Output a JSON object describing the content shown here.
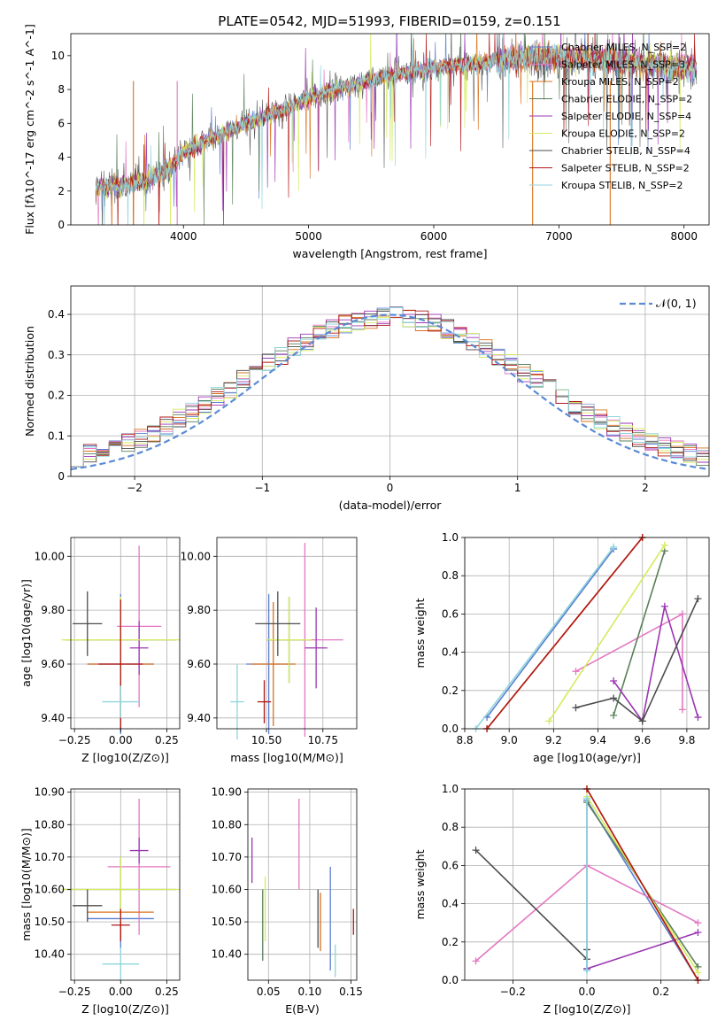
{
  "title": "PLATE=0542, MJD=51993, FIBERID=0159, z=0.151",
  "colors": [
    "#5b7fd1",
    "#e377c2",
    "#d9711f",
    "#5a7f5a",
    "#9b36b3",
    "#d4eb5e",
    "#4d4d4d",
    "#b01717",
    "#8fd5dd"
  ],
  "models": [
    "Chabrier MILES, N_SSP=2",
    "Salpeter MILES, N_SSP=3",
    "Kroupa MILES, N_SSP=2",
    "Chabrier ELODIE, N_SSP=2",
    "Salpeter ELODIE, N_SSP=4",
    "Kroupa ELODIE, N_SSP=2",
    "Chabrier STELIB, N_SSP=4",
    "Salpeter STELIB, N_SSP=2",
    "Kroupa STELIB, N_SSP=2"
  ],
  "chart_data": [
    {
      "id": "spectrum",
      "type": "line",
      "xlabel": "wavelength [Angstrom, rest frame]",
      "ylabel": "Flux [fλ10^-17 erg cm^-2 s^-1 A^-1]",
      "xlim": [
        3100,
        8200
      ],
      "ylim": [
        0,
        11.3
      ],
      "xticks": [
        4000,
        5000,
        6000,
        7000,
        8000
      ],
      "yticks": [
        0,
        2,
        4,
        6,
        8,
        10
      ],
      "legend_loc": "upper-right",
      "continuum": {
        "x": [
          3300,
          3500,
          3700,
          3900,
          4000,
          4200,
          4500,
          4800,
          5000,
          5300,
          5600,
          6000,
          6300,
          6600,
          7000,
          7400,
          7800,
          8100
        ],
        "y": [
          2.3,
          2.3,
          2.6,
          3.4,
          4.3,
          5.0,
          6.0,
          6.8,
          7.5,
          8.2,
          8.7,
          9.3,
          9.5,
          9.8,
          9.9,
          9.7,
          9.4,
          9.2
        ]
      },
      "data_range": [
        3300,
        8100
      ]
    },
    {
      "id": "residuals",
      "type": "line",
      "xlabel": "(data-model)/error",
      "ylabel": "Normed distribution",
      "xlim": [
        -2.5,
        2.5
      ],
      "ylim": [
        0,
        0.47
      ],
      "xticks": [
        -2,
        -1,
        0,
        1,
        2
      ],
      "yticks": [
        0.0,
        0.1,
        0.2,
        0.3,
        0.4
      ],
      "legend": "𝒩(0, 1)",
      "legend_loc": "upper-right",
      "bin_width": 0.1
    },
    {
      "id": "z-age",
      "type": "scatter",
      "xlabel": "Z [log10(Z/Z⊙)]",
      "ylabel": "age [log10(age/yr)]",
      "xlim": [
        -0.27,
        0.32
      ],
      "ylim": [
        9.36,
        10.07
      ],
      "xticks": [
        -0.25,
        0.0,
        0.25
      ],
      "yticks": [
        9.4,
        9.6,
        9.8,
        10.0
      ],
      "points": [
        {
          "m": 0,
          "x": 0.0,
          "y": 9.6,
          "xe": 0.18,
          "ye": 0.26
        },
        {
          "m": 1,
          "x": 0.1,
          "y": 9.74,
          "xe": 0.12,
          "ye": 0.3
        },
        {
          "m": 2,
          "x": 0.0,
          "y": 9.6,
          "xe": 0.18,
          "ye": 0.23
        },
        {
          "m": 3,
          "x": 0.0,
          "y": 9.69,
          "xe": 0.3,
          "ye": 0.16
        },
        {
          "m": 4,
          "x": 0.1,
          "y": 9.66,
          "xe": 0.05,
          "ye": 0.1
        },
        {
          "m": 5,
          "x": 0.0,
          "y": 9.69,
          "xe": 0.32,
          "ye": 0.16
        },
        {
          "m": 6,
          "x": -0.18,
          "y": 9.75,
          "xe": 0.08,
          "ye": 0.12
        },
        {
          "m": 7,
          "x": 0.0,
          "y": 9.6,
          "xe": 0.12,
          "ye": 0.24
        },
        {
          "m": 8,
          "x": 0.0,
          "y": 9.46,
          "xe": 0.1,
          "ye": 0.06
        }
      ]
    },
    {
      "id": "mass-age",
      "type": "scatter",
      "xlabel": "mass [log10(M/M⊙)]",
      "ylabel": "",
      "xlim": [
        10.28,
        10.9
      ],
      "ylim": [
        9.36,
        10.07
      ],
      "xticks": [
        10.5,
        10.75
      ],
      "yticks": [
        9.4,
        9.6,
        9.8,
        10.0
      ],
      "points": [
        {
          "m": 0,
          "x": 10.51,
          "y": 9.6,
          "xe": 0.1,
          "ye": 0.26
        },
        {
          "m": 1,
          "x": 10.67,
          "y": 9.69,
          "xe": 0.17,
          "ye": 0.36
        },
        {
          "m": 2,
          "x": 10.53,
          "y": 9.6,
          "xe": 0.1,
          "ye": 0.23
        },
        {
          "m": 3,
          "x": 10.6,
          "y": 9.69,
          "xe": 0.1,
          "ye": 0.16
        },
        {
          "m": 4,
          "x": 10.72,
          "y": 9.66,
          "xe": 0.05,
          "ye": 0.15
        },
        {
          "m": 5,
          "x": 10.6,
          "y": 9.69,
          "xe": 0.1,
          "ye": 0.16
        },
        {
          "m": 6,
          "x": 10.55,
          "y": 9.75,
          "xe": 0.1,
          "ye": 0.12
        },
        {
          "m": 7,
          "x": 10.49,
          "y": 9.46,
          "xe": 0.03,
          "ye": 0.08
        },
        {
          "m": 8,
          "x": 10.37,
          "y": 9.46,
          "xe": 0.03,
          "ye": 0.14
        }
      ]
    },
    {
      "id": "age-weight",
      "type": "line",
      "xlabel": "age [log10(age/yr)]",
      "ylabel": "mass weight",
      "xlim": [
        8.8,
        9.9
      ],
      "ylim": [
        0,
        1.0
      ],
      "xticks": [
        8.8,
        9.0,
        9.2,
        9.4,
        9.6,
        9.8
      ],
      "yticks": [
        0.0,
        0.2,
        0.4,
        0.6,
        0.8,
        1.0
      ],
      "series": [
        {
          "m": 0,
          "x": [
            8.9,
            9.47
          ],
          "y": [
            0.06,
            0.94
          ]
        },
        {
          "m": 1,
          "x": [
            9.3,
            9.78,
            9.78
          ],
          "y": [
            0.3,
            0.6,
            0.1
          ]
        },
        {
          "m": 2,
          "x": [
            8.9,
            9.6
          ],
          "y": [
            0.0,
            1.0
          ]
        },
        {
          "m": 3,
          "x": [
            9.47,
            9.7
          ],
          "y": [
            0.07,
            0.93
          ]
        },
        {
          "m": 4,
          "x": [
            9.47,
            9.6,
            9.7,
            9.85
          ],
          "y": [
            0.25,
            0.04,
            0.64,
            0.06
          ]
        },
        {
          "m": 5,
          "x": [
            9.18,
            9.7
          ],
          "y": [
            0.04,
            0.96
          ]
        },
        {
          "m": 6,
          "x": [
            9.3,
            9.47,
            9.6,
            9.85
          ],
          "y": [
            0.11,
            0.16,
            0.04,
            0.68
          ]
        },
        {
          "m": 7,
          "x": [
            8.9,
            9.6
          ],
          "y": [
            0.0,
            1.0
          ]
        },
        {
          "m": 8,
          "x": [
            8.85,
            9.47
          ],
          "y": [
            0.0,
            0.95
          ]
        }
      ]
    },
    {
      "id": "z-mass",
      "type": "scatter",
      "xlabel": "Z [log10(Z/Z⊙)]",
      "ylabel": "mass [log10(M/M⊙)]",
      "xlim": [
        -0.27,
        0.32
      ],
      "ylim": [
        10.32,
        10.91
      ],
      "xticks": [
        -0.25,
        0.0,
        0.25
      ],
      "yticks": [
        10.4,
        10.5,
        10.6,
        10.7,
        10.8,
        10.9
      ],
      "points": [
        {
          "m": 0,
          "x": 0.0,
          "y": 10.51,
          "xe": 0.18,
          "ye": 0.09
        },
        {
          "m": 1,
          "x": 0.1,
          "y": 10.67,
          "xe": 0.17,
          "ye": 0.21
        },
        {
          "m": 2,
          "x": 0.0,
          "y": 10.53,
          "xe": 0.18,
          "ye": 0.08
        },
        {
          "m": 3,
          "x": 0.0,
          "y": 10.6,
          "xe": 0.3,
          "ye": 0.1
        },
        {
          "m": 4,
          "x": 0.1,
          "y": 10.72,
          "xe": 0.05,
          "ye": 0.04
        },
        {
          "m": 5,
          "x": 0.0,
          "y": 10.6,
          "xe": 0.32,
          "ye": 0.1
        },
        {
          "m": 6,
          "x": -0.18,
          "y": 10.55,
          "xe": 0.08,
          "ye": 0.05
        },
        {
          "m": 7,
          "x": 0.0,
          "y": 10.49,
          "xe": 0.05,
          "ye": 0.05
        },
        {
          "m": 8,
          "x": 0.0,
          "y": 10.37,
          "xe": 0.1,
          "ye": 0.05
        }
      ]
    },
    {
      "id": "ebv-mass",
      "type": "scatter",
      "xlabel": "E(B-V)",
      "ylabel": "",
      "xlim": [
        0.025,
        0.157
      ],
      "ylim": [
        10.32,
        10.91
      ],
      "xticks": [
        0.05,
        0.1,
        0.15
      ],
      "yticks": [
        10.4,
        10.5,
        10.6,
        10.7,
        10.8,
        10.9
      ],
      "points": [
        {
          "m": 0,
          "x": 0.125,
          "y": 10.51,
          "xe": 0,
          "ye": 0.16
        },
        {
          "m": 1,
          "x": 0.087,
          "y": 10.74,
          "xe": 0,
          "ye": 0.14
        },
        {
          "m": 2,
          "x": 0.113,
          "y": 10.5,
          "xe": 0,
          "ye": 0.09
        },
        {
          "m": 3,
          "x": 0.043,
          "y": 10.49,
          "xe": 0,
          "ye": 0.11
        },
        {
          "m": 4,
          "x": 0.03,
          "y": 10.69,
          "xe": 0,
          "ye": 0.07
        },
        {
          "m": 5,
          "x": 0.046,
          "y": 10.54,
          "xe": 0,
          "ye": 0.1
        },
        {
          "m": 6,
          "x": 0.11,
          "y": 10.51,
          "xe": 0,
          "ye": 0.09
        },
        {
          "m": 7,
          "x": 0.153,
          "y": 10.5,
          "xe": 0,
          "ye": 0.04
        },
        {
          "m": 8,
          "x": 0.131,
          "y": 10.38,
          "xe": 0,
          "ye": 0.05
        }
      ]
    },
    {
      "id": "z-weight",
      "type": "line",
      "xlabel": "Z [log10(Z/Z⊙)]",
      "ylabel": "mass weight",
      "xlim": [
        -0.33,
        0.33
      ],
      "ylim": [
        0,
        1.0
      ],
      "xticks": [
        -0.2,
        0.0,
        0.2
      ],
      "yticks": [
        0.0,
        0.2,
        0.4,
        0.6,
        0.8,
        1.0
      ],
      "series": [
        {
          "m": 0,
          "x": [
            0.0,
            0.0,
            0.3
          ],
          "y": [
            0.06,
            0.94,
            0.0
          ]
        },
        {
          "m": 1,
          "x": [
            -0.3,
            0.0,
            0.3
          ],
          "y": [
            0.1,
            0.6,
            0.3
          ]
        },
        {
          "m": 2,
          "x": [
            0.0,
            0.3
          ],
          "y": [
            1.0,
            0.0
          ]
        },
        {
          "m": 3,
          "x": [
            0.0,
            0.3
          ],
          "y": [
            0.93,
            0.07
          ]
        },
        {
          "m": 4,
          "x": [
            0.0,
            0.3
          ],
          "y": [
            0.06,
            0.25
          ]
        },
        {
          "m": 5,
          "x": [
            0.0,
            0.3
          ],
          "y": [
            0.96,
            0.04
          ]
        },
        {
          "m": 6,
          "x": [
            -0.3,
            0.0,
            0.0
          ],
          "y": [
            0.68,
            0.11,
            0.16
          ]
        },
        {
          "m": 7,
          "x": [
            0.0,
            0.3
          ],
          "y": [
            1.0,
            0.0
          ]
        },
        {
          "m": 8,
          "x": [
            0.0,
            0.0
          ],
          "y": [
            0.05,
            0.95
          ]
        }
      ]
    }
  ]
}
